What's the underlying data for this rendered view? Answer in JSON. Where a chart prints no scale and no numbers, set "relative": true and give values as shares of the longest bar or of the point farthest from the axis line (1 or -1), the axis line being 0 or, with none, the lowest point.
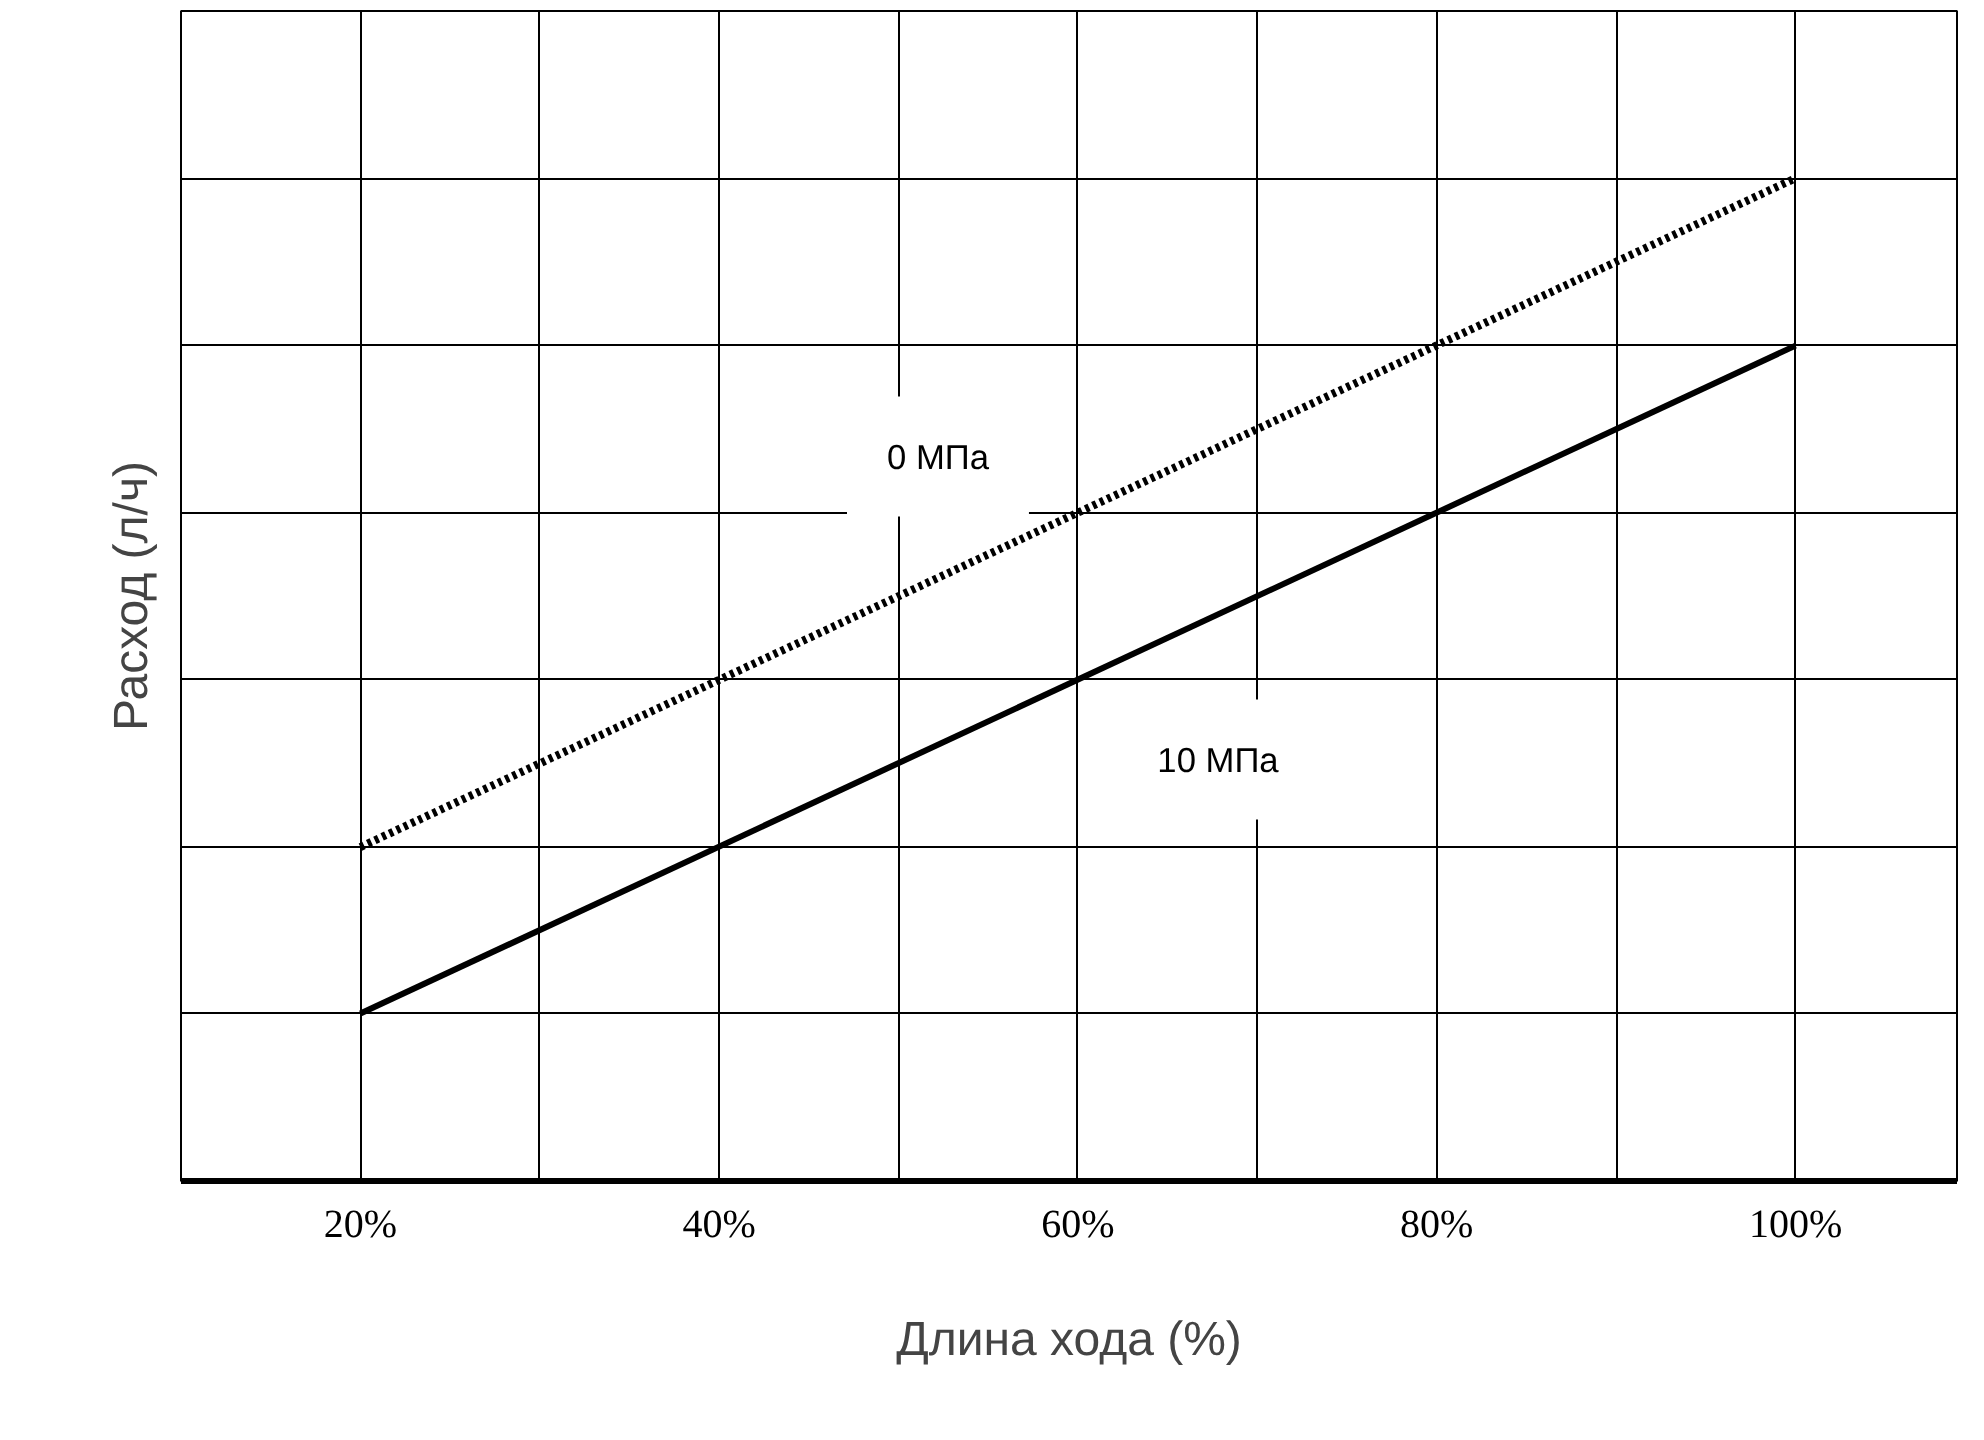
{
  "chart_data": {
    "type": "line",
    "xlabel": "Длина хода (%)",
    "ylabel": "Расход (л/ч)",
    "relative": true,
    "x": [
      20,
      100
    ],
    "series": [
      {
        "name": "0 МПа",
        "color": "#000000",
        "values": [
          0.333,
          1
        ],
        "line_style": "dotted"
      },
      {
        "name": "10 МПа",
        "color": "#000000",
        "values": [
          0.167,
          0.833
        ],
        "line_style": "solid"
      }
    ],
    "xlim": [
      10,
      109
    ],
    "xticks": [
      {
        "value": 10,
        "label": null
      },
      {
        "value": 20,
        "label": "20%"
      },
      {
        "value": 30,
        "label": null
      },
      {
        "value": 40,
        "label": "40%"
      },
      {
        "value": 50,
        "label": null
      },
      {
        "value": 60,
        "label": "60%"
      },
      {
        "value": 70,
        "label": null
      },
      {
        "value": 80,
        "label": "80%"
      },
      {
        "value": 90,
        "label": null
      },
      {
        "value": 100,
        "label": "100%"
      }
    ],
    "grid": true,
    "marker": "none",
    "tick_labels": "x"
  }
}
